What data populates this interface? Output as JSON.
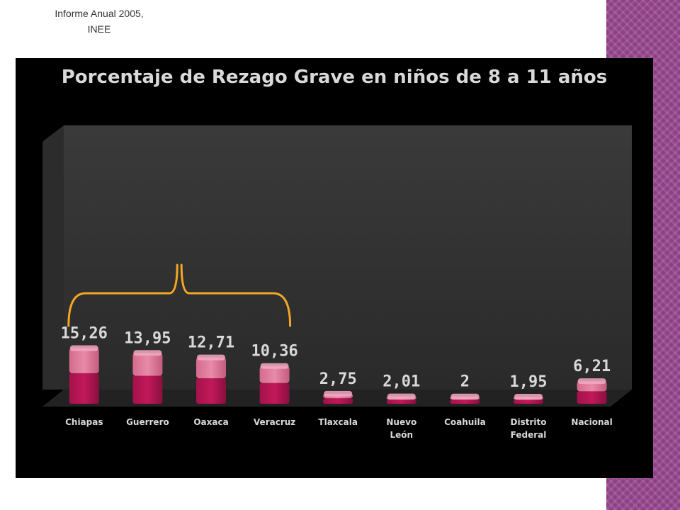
{
  "source_note": "Informe Anual 2005,\nINEE",
  "colors": {
    "bar_dark": "#c2185b",
    "bar_light": "#e88aa8",
    "brace": "#f5a623",
    "band": "#8e3f86",
    "label_text": "#d9d9d9"
  },
  "chart_data": {
    "type": "bar",
    "title": "Porcentaje de Rezago Grave en niños de 8 a 11 años",
    "categories": [
      "Chiapas",
      "Guerrero",
      "Oaxaca",
      "Veracruz",
      "Tlaxcala",
      "Nuevo León",
      "Coahuila",
      "Distrito Federal",
      "Nacional"
    ],
    "series": [
      {
        "values": [
          15.26,
          13.95,
          12.71,
          10.36,
          2.75,
          2.01,
          2,
          1.95,
          6.21
        ],
        "data_labels": [
          "15,26",
          "13,95",
          "12,71",
          "10,36",
          "2,75",
          "2,01",
          "2",
          "1,95",
          "6,21"
        ]
      }
    ],
    "ylim": [
      0,
      70
    ],
    "grid": false,
    "legend": "none",
    "annotations": [
      {
        "type": "brace",
        "from_category": "Chiapas",
        "to_category": "Veracruz"
      }
    ]
  }
}
